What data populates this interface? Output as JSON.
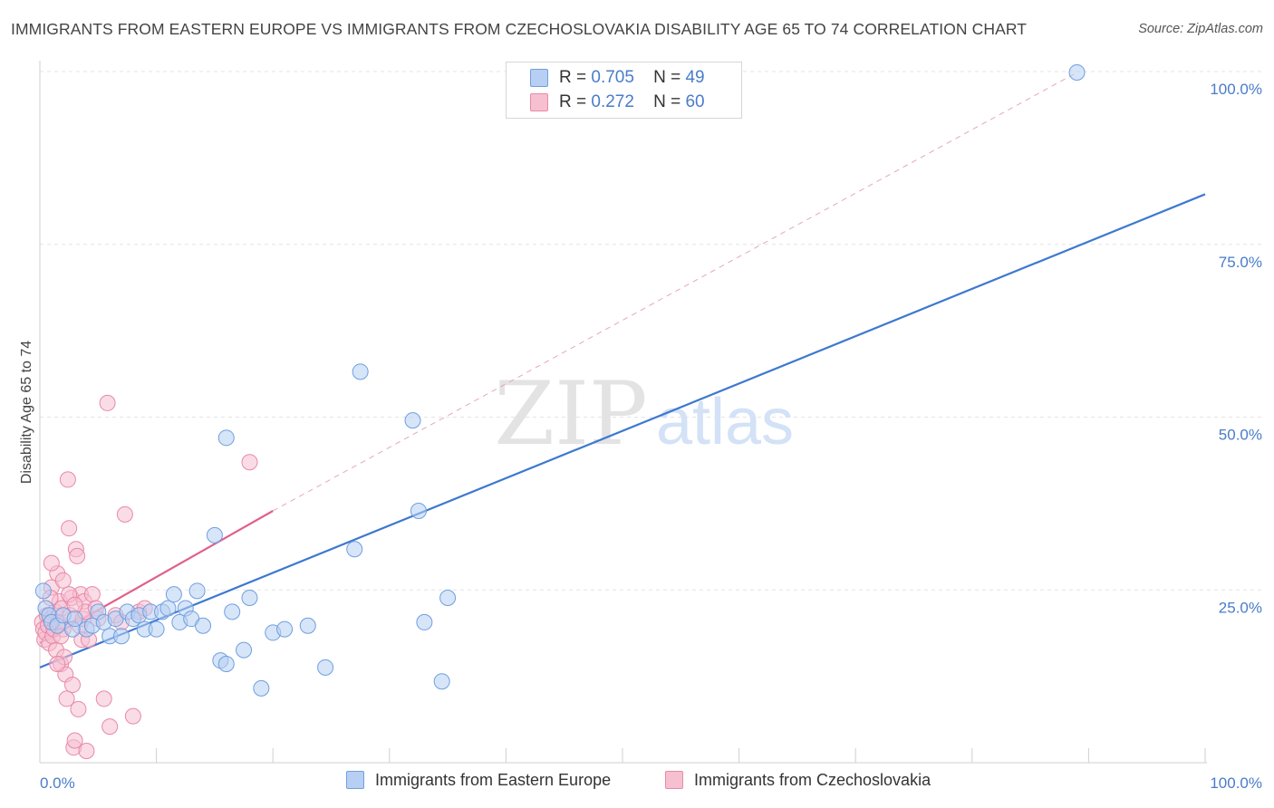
{
  "title": "IMMIGRANTS FROM EASTERN EUROPE VS IMMIGRANTS FROM CZECHOSLOVAKIA DISABILITY AGE 65 TO 74 CORRELATION CHART",
  "source": "Source: ZipAtlas.com",
  "watermark": {
    "zip": "ZIP",
    "atlas": "atlas"
  },
  "legend": {
    "r_label": "R =",
    "n_label": "N =",
    "items": [
      {
        "name": "Immigrants from Eastern Europe",
        "r": "0.705",
        "n": "49",
        "color": "#6f9fe0",
        "fill": "#b7cff3"
      },
      {
        "name": "Immigrants from Czechoslovakia",
        "r": "0.272",
        "n": "60",
        "color": "#e889a6",
        "fill": "#f6c0d1"
      }
    ]
  },
  "chart_data": {
    "type": "scatter",
    "title": "IMMIGRANTS FROM EASTERN EUROPE VS IMMIGRANTS FROM CZECHOSLOVAKIA DISABILITY AGE 65 TO 74 CORRELATION CHART",
    "xlabel": "",
    "ylabel": "Disability Age 65 to 74",
    "xlim": [
      0,
      100
    ],
    "ylim": [
      0,
      100
    ],
    "x_tick_labels": [
      {
        "value": 0,
        "label": "0.0%"
      },
      {
        "value": 100,
        "label": "100.0%"
      }
    ],
    "y_tick_labels": [
      {
        "value": 25,
        "label": "25.0%"
      },
      {
        "value": 50,
        "label": "50.0%"
      },
      {
        "value": 75,
        "label": "75.0%"
      },
      {
        "value": 100,
        "label": "100.0%"
      }
    ],
    "series": [
      {
        "name": "Immigrants from Eastern Europe",
        "color": "#3d78d0",
        "fill": "#b7cff3",
        "trendline": {
          "x": [
            0,
            100
          ],
          "y": [
            14.5,
            82.5
          ],
          "style": "solid"
        },
        "points": [
          [
            0.3,
            25.5
          ],
          [
            0.5,
            23.0
          ],
          [
            0.8,
            22.0
          ],
          [
            1.0,
            21.0
          ],
          [
            1.5,
            20.5
          ],
          [
            2.0,
            22.0
          ],
          [
            2.8,
            20.0
          ],
          [
            3.0,
            21.5
          ],
          [
            4.0,
            20.0
          ],
          [
            4.5,
            20.5
          ],
          [
            5.0,
            22.5
          ],
          [
            5.5,
            21.0
          ],
          [
            6.0,
            19.0
          ],
          [
            6.5,
            21.5
          ],
          [
            7.0,
            19.0
          ],
          [
            7.5,
            22.5
          ],
          [
            8.0,
            21.5
          ],
          [
            8.5,
            22.0
          ],
          [
            9.0,
            20.0
          ],
          [
            9.5,
            22.5
          ],
          [
            10.0,
            20.0
          ],
          [
            10.5,
            22.5
          ],
          [
            11.0,
            23.0
          ],
          [
            11.5,
            25.0
          ],
          [
            12.0,
            21.0
          ],
          [
            12.5,
            23.0
          ],
          [
            13.0,
            21.5
          ],
          [
            13.5,
            25.5
          ],
          [
            14.0,
            20.5
          ],
          [
            15.0,
            33.5
          ],
          [
            16.0,
            47.5
          ],
          [
            16.5,
            22.5
          ],
          [
            17.5,
            17.0
          ],
          [
            18.0,
            24.5
          ],
          [
            19.0,
            11.5
          ],
          [
            20.0,
            19.5
          ],
          [
            21.0,
            20.0
          ],
          [
            23.0,
            20.5
          ],
          [
            24.5,
            14.5
          ],
          [
            27.0,
            31.5
          ],
          [
            27.5,
            57.0
          ],
          [
            32.0,
            50.0
          ],
          [
            32.5,
            37.0
          ],
          [
            33.0,
            21.0
          ],
          [
            34.5,
            12.5
          ],
          [
            35.0,
            24.5
          ],
          [
            15.5,
            15.5
          ],
          [
            16.0,
            15.0
          ],
          [
            89.0,
            100.0
          ]
        ]
      },
      {
        "name": "Immigrants from Czechoslovakia",
        "color": "#e0608a",
        "fill": "#f6c0d1",
        "trendline": {
          "x": [
            0,
            20
          ],
          "y": [
            18.0,
            37.0
          ],
          "style": "solid",
          "extended_x": [
            20,
            89
          ],
          "extended_y": [
            37.0,
            100.0
          ],
          "extended_style": "dashed"
        },
        "points": [
          [
            0.2,
            21.0
          ],
          [
            0.3,
            20.0
          ],
          [
            0.4,
            18.5
          ],
          [
            0.5,
            19.5
          ],
          [
            0.6,
            22.0
          ],
          [
            0.7,
            20.5
          ],
          [
            0.8,
            18.0
          ],
          [
            0.9,
            21.5
          ],
          [
            1.0,
            26.0
          ],
          [
            1.1,
            19.0
          ],
          [
            1.2,
            20.0
          ],
          [
            1.3,
            22.5
          ],
          [
            1.4,
            17.0
          ],
          [
            1.5,
            28.0
          ],
          [
            1.6,
            21.0
          ],
          [
            1.7,
            24.0
          ],
          [
            1.8,
            15.0
          ],
          [
            1.9,
            23.0
          ],
          [
            2.0,
            20.0
          ],
          [
            2.1,
            16.0
          ],
          [
            2.2,
            13.5
          ],
          [
            2.3,
            10.0
          ],
          [
            2.4,
            41.5
          ],
          [
            2.5,
            34.5
          ],
          [
            2.6,
            22.0
          ],
          [
            2.7,
            24.5
          ],
          [
            2.8,
            12.0
          ],
          [
            2.9,
            3.0
          ],
          [
            3.0,
            4.0
          ],
          [
            3.1,
            31.5
          ],
          [
            3.2,
            30.5
          ],
          [
            3.3,
            8.5
          ],
          [
            3.4,
            20.5
          ],
          [
            3.5,
            25.0
          ],
          [
            3.6,
            18.5
          ],
          [
            3.7,
            21.5
          ],
          [
            3.8,
            24.0
          ],
          [
            3.9,
            22.5
          ],
          [
            4.0,
            2.5
          ],
          [
            4.2,
            18.5
          ],
          [
            4.5,
            25.0
          ],
          [
            4.8,
            23.0
          ],
          [
            5.0,
            21.5
          ],
          [
            5.5,
            10.0
          ],
          [
            5.8,
            52.5
          ],
          [
            6.0,
            6.0
          ],
          [
            6.5,
            22.0
          ],
          [
            7.0,
            21.0
          ],
          [
            7.3,
            36.5
          ],
          [
            8.0,
            7.5
          ],
          [
            8.5,
            22.5
          ],
          [
            9.0,
            23.0
          ],
          [
            18.0,
            44.0
          ],
          [
            1.0,
            29.5
          ],
          [
            2.0,
            27.0
          ],
          [
            1.5,
            15.0
          ],
          [
            1.8,
            19.0
          ],
          [
            2.5,
            25.0
          ],
          [
            3.0,
            23.5
          ],
          [
            0.9,
            24.5
          ]
        ]
      }
    ],
    "grid": true,
    "legend_position": "top-center"
  }
}
